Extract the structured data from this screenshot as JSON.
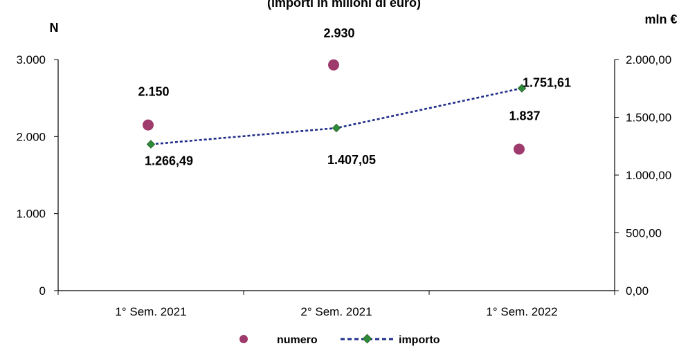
{
  "chart_data": {
    "type": "scatter+line",
    "title": "(importi in milioni di euro)",
    "categories": [
      "1° Sem. 2021",
      "2° Sem. 2021",
      "1° Sem. 2022"
    ],
    "left_axis": {
      "label": "N",
      "ylim": [
        0,
        3000
      ],
      "ticks": [
        "0",
        "1.000",
        "2.000",
        "3.000"
      ],
      "tick_values": [
        0,
        1000,
        2000,
        3000
      ]
    },
    "right_axis": {
      "label": "mln €",
      "ylim": [
        0,
        2000
      ],
      "ticks": [
        "0,00",
        "500,00",
        "1.000,00",
        "1.500,00",
        "2.000,00"
      ],
      "tick_values": [
        0,
        500,
        1000,
        1500,
        2000
      ]
    },
    "series": [
      {
        "name": "numero",
        "axis": "left",
        "style": "markers",
        "color": "#9e3a6c",
        "values": [
          2150,
          2930,
          1837
        ],
        "labels": [
          "2.150",
          "2.930",
          "1.837"
        ]
      },
      {
        "name": "importo",
        "axis": "right",
        "style": "dashed-line-diamond",
        "color": "#1f2d8a",
        "marker_color": "#2e8b3a",
        "values": [
          1266.49,
          1407.05,
          1751.61
        ],
        "labels": [
          "1.266,49",
          "1.407,05",
          "1.751,61"
        ]
      }
    ],
    "legend": "bottom",
    "grid": false
  }
}
